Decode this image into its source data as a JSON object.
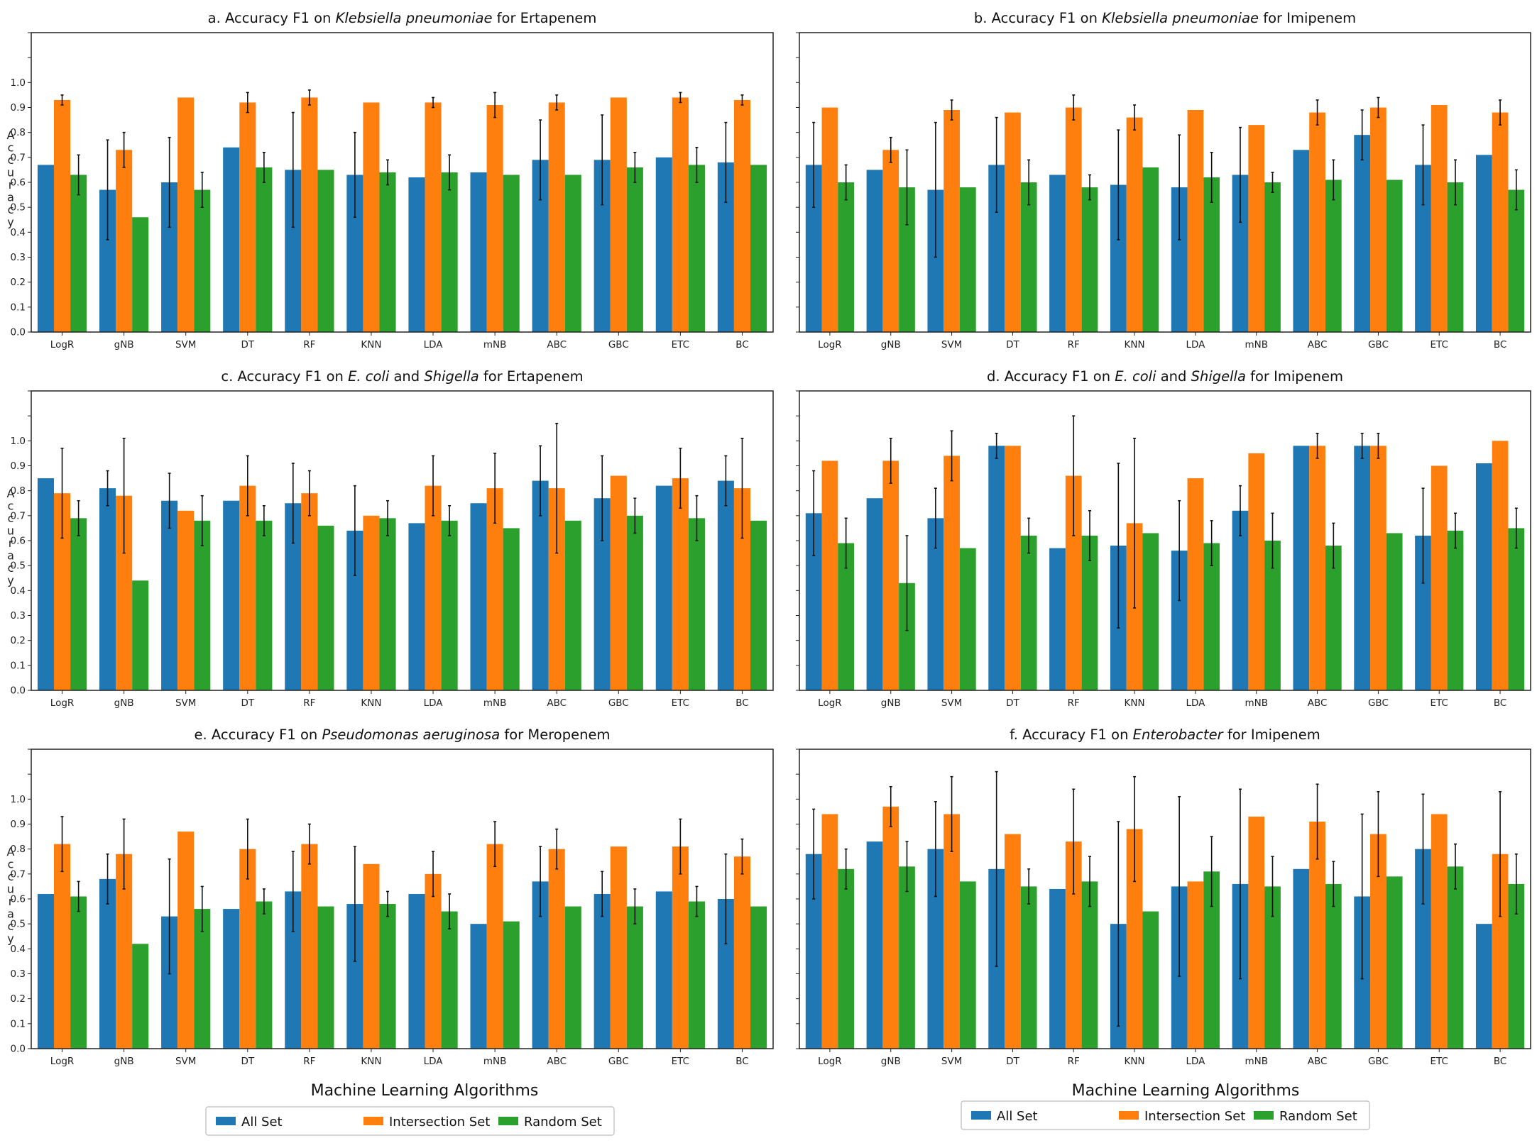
{
  "colors": {
    "all": "#1f77b4",
    "intersection": "#ff7f0e",
    "random": "#2ca02c"
  },
  "xlabels": [
    "Machine Learning Algorithms",
    "Machine Learning Algorithms"
  ],
  "legend": [
    "All Set",
    "Intersection Set",
    "Random Set"
  ],
  "chart_data": [
    {
      "type": "bar",
      "title": {
        "prefix": "a.  Accuracy F1 on ",
        "italic1": "Klebsiella pneumoniae",
        "middle": "",
        "italic2": "",
        "suffix": " for Ertapenem"
      },
      "ylabel": "Accuracy",
      "ylim": [
        0,
        1.2
      ],
      "yticks": [
        "0.0",
        "0.1",
        "0.2",
        "0.3",
        "0.4",
        "0.5",
        "0.6",
        "0.7",
        "0.8",
        "0.9",
        "1.0"
      ],
      "categories": [
        "LogR",
        "gNB",
        "SVM",
        "DT",
        "RF",
        "KNN",
        "LDA",
        "mNB",
        "ABC",
        "GBC",
        "ETC",
        "BC"
      ],
      "series": [
        {
          "name": "All Set",
          "values": [
            0.67,
            0.57,
            0.6,
            0.74,
            0.65,
            0.63,
            0.62,
            0.64,
            0.69,
            0.69,
            0.7,
            0.68
          ],
          "err": [
            0.0,
            0.2,
            0.18,
            0.0,
            0.23,
            0.17,
            0.0,
            0.0,
            0.16,
            0.18,
            0.0,
            0.16
          ]
        },
        {
          "name": "Intersection Set",
          "values": [
            0.93,
            0.73,
            0.94,
            0.92,
            0.94,
            0.92,
            0.92,
            0.91,
            0.92,
            0.94,
            0.94,
            0.93
          ],
          "err": [
            0.02,
            0.07,
            0.0,
            0.04,
            0.03,
            0.0,
            0.02,
            0.05,
            0.03,
            0.0,
            0.02,
            0.02
          ]
        },
        {
          "name": "Random Set",
          "values": [
            0.63,
            0.46,
            0.57,
            0.66,
            0.65,
            0.64,
            0.64,
            0.63,
            0.63,
            0.66,
            0.67,
            0.67
          ],
          "err": [
            0.08,
            0.0,
            0.07,
            0.06,
            0.0,
            0.05,
            0.07,
            0.0,
            0.0,
            0.06,
            0.07,
            0.0
          ]
        }
      ]
    },
    {
      "type": "bar",
      "title": {
        "prefix": "b.  Accuracy F1 on ",
        "italic1": "Klebsiella pneumoniae",
        "middle": "",
        "italic2": "",
        "suffix": " for Imipenem"
      },
      "ylabel": "",
      "ylim": [
        0,
        1.2
      ],
      "yticks": [],
      "categories": [
        "LogR",
        "gNB",
        "SVM",
        "DT",
        "RF",
        "KNN",
        "LDA",
        "mNB",
        "ABC",
        "GBC",
        "ETC",
        "BC"
      ],
      "series": [
        {
          "name": "All Set",
          "values": [
            0.67,
            0.65,
            0.57,
            0.67,
            0.63,
            0.59,
            0.58,
            0.63,
            0.73,
            0.79,
            0.67,
            0.71
          ],
          "err": [
            0.17,
            0.0,
            0.27,
            0.19,
            0.0,
            0.22,
            0.21,
            0.19,
            0.0,
            0.1,
            0.16,
            0.0
          ]
        },
        {
          "name": "Intersection Set",
          "values": [
            0.9,
            0.73,
            0.89,
            0.88,
            0.9,
            0.86,
            0.89,
            0.83,
            0.88,
            0.9,
            0.91,
            0.88
          ],
          "err": [
            0.0,
            0.05,
            0.04,
            0.0,
            0.05,
            0.05,
            0.0,
            0.0,
            0.05,
            0.04,
            0.0,
            0.05
          ]
        },
        {
          "name": "Random Set",
          "values": [
            0.6,
            0.58,
            0.58,
            0.6,
            0.58,
            0.66,
            0.62,
            0.6,
            0.61,
            0.61,
            0.6,
            0.57
          ],
          "err": [
            0.07,
            0.15,
            0.0,
            0.09,
            0.05,
            0.0,
            0.1,
            0.04,
            0.08,
            0.0,
            0.09,
            0.08
          ]
        }
      ]
    },
    {
      "type": "bar",
      "title": {
        "prefix": "c.  Accuracy F1 on ",
        "italic1": "E. coli",
        "middle": " and ",
        "italic2": "Shigella",
        "suffix": " for Ertapenem"
      },
      "ylabel": "Accuracy",
      "ylim": [
        0,
        1.2
      ],
      "yticks": [
        "0.0",
        "0.1",
        "0.2",
        "0.3",
        "0.4",
        "0.5",
        "0.6",
        "0.7",
        "0.8",
        "0.9",
        "1.0"
      ],
      "categories": [
        "LogR",
        "gNB",
        "SVM",
        "DT",
        "RF",
        "KNN",
        "LDA",
        "mNB",
        "ABC",
        "GBC",
        "ETC",
        "BC"
      ],
      "series": [
        {
          "name": "All Set",
          "values": [
            0.85,
            0.81,
            0.76,
            0.76,
            0.75,
            0.64,
            0.67,
            0.75,
            0.84,
            0.77,
            0.82,
            0.84
          ],
          "err": [
            0.0,
            0.07,
            0.11,
            0.0,
            0.16,
            0.18,
            0.0,
            0.0,
            0.14,
            0.17,
            0.0,
            0.1
          ]
        },
        {
          "name": "Intersection Set",
          "values": [
            0.79,
            0.78,
            0.72,
            0.82,
            0.79,
            0.7,
            0.82,
            0.81,
            0.81,
            0.86,
            0.85,
            0.81
          ],
          "err": [
            0.18,
            0.23,
            0.0,
            0.12,
            0.09,
            0.0,
            0.12,
            0.14,
            0.26,
            0.0,
            0.12,
            0.2
          ]
        },
        {
          "name": "Random Set",
          "values": [
            0.69,
            0.44,
            0.68,
            0.68,
            0.66,
            0.69,
            0.68,
            0.65,
            0.68,
            0.7,
            0.69,
            0.68
          ],
          "err": [
            0.07,
            0.0,
            0.1,
            0.06,
            0.0,
            0.07,
            0.06,
            0.0,
            0.0,
            0.07,
            0.09,
            0.0
          ]
        }
      ]
    },
    {
      "type": "bar",
      "title": {
        "prefix": "d.  Accuracy F1 on ",
        "italic1": "E. coli",
        "middle": " and ",
        "italic2": "Shigella",
        "suffix": " for Imipenem"
      },
      "ylabel": "",
      "ylim": [
        0,
        1.2
      ],
      "yticks": [],
      "categories": [
        "LogR",
        "gNB",
        "SVM",
        "DT",
        "RF",
        "KNN",
        "LDA",
        "mNB",
        "ABC",
        "GBC",
        "ETC",
        "BC"
      ],
      "series": [
        {
          "name": "All Set",
          "values": [
            0.71,
            0.77,
            0.69,
            0.98,
            0.57,
            0.58,
            0.56,
            0.72,
            0.98,
            0.98,
            0.62,
            0.91
          ],
          "err": [
            0.17,
            0.0,
            0.12,
            0.05,
            0.0,
            0.33,
            0.2,
            0.1,
            0.0,
            0.05,
            0.19,
            0.0
          ]
        },
        {
          "name": "Intersection Set",
          "values": [
            0.92,
            0.92,
            0.94,
            0.98,
            0.86,
            0.67,
            0.85,
            0.95,
            0.98,
            0.98,
            0.9,
            1.0
          ],
          "err": [
            0.0,
            0.09,
            0.1,
            0.0,
            0.24,
            0.34,
            0.0,
            0.0,
            0.05,
            0.05,
            0.0,
            0.0
          ]
        },
        {
          "name": "Random Set",
          "values": [
            0.59,
            0.43,
            0.57,
            0.62,
            0.62,
            0.63,
            0.59,
            0.6,
            0.58,
            0.63,
            0.64,
            0.65
          ],
          "err": [
            0.1,
            0.19,
            0.0,
            0.07,
            0.1,
            0.0,
            0.09,
            0.11,
            0.09,
            0.0,
            0.07,
            0.08
          ]
        }
      ]
    },
    {
      "type": "bar",
      "title": {
        "prefix": "e.  Accuracy F1 on ",
        "italic1": "Pseudomonas aeruginosa",
        "middle": "",
        "italic2": "",
        "suffix": " for Meropenem"
      },
      "ylabel": "Accuracy",
      "ylim": [
        0,
        1.2
      ],
      "yticks": [
        "0.0",
        "0.1",
        "0.2",
        "0.3",
        "0.4",
        "0.5",
        "0.6",
        "0.7",
        "0.8",
        "0.9",
        "1.0"
      ],
      "categories": [
        "LogR",
        "gNB",
        "SVM",
        "DT",
        "RF",
        "KNN",
        "LDA",
        "mNB",
        "ABC",
        "GBC",
        "ETC",
        "BC"
      ],
      "series": [
        {
          "name": "All Set",
          "values": [
            0.62,
            0.68,
            0.53,
            0.56,
            0.63,
            0.58,
            0.62,
            0.5,
            0.67,
            0.62,
            0.63,
            0.6
          ],
          "err": [
            0.0,
            0.1,
            0.23,
            0.0,
            0.16,
            0.23,
            0.0,
            0.0,
            0.14,
            0.09,
            0.0,
            0.18
          ]
        },
        {
          "name": "Intersection Set",
          "values": [
            0.82,
            0.78,
            0.87,
            0.8,
            0.82,
            0.74,
            0.7,
            0.82,
            0.8,
            0.81,
            0.81,
            0.77
          ],
          "err": [
            0.11,
            0.14,
            0.0,
            0.12,
            0.08,
            0.0,
            0.09,
            0.09,
            0.08,
            0.0,
            0.11,
            0.07
          ]
        },
        {
          "name": "Random Set",
          "values": [
            0.61,
            0.42,
            0.56,
            0.59,
            0.57,
            0.58,
            0.55,
            0.51,
            0.57,
            0.57,
            0.59,
            0.57
          ],
          "err": [
            0.06,
            0.0,
            0.09,
            0.05,
            0.0,
            0.05,
            0.07,
            0.0,
            0.0,
            0.07,
            0.06,
            0.0
          ]
        }
      ]
    },
    {
      "type": "bar",
      "title": {
        "prefix": "f.  Accuracy F1 on ",
        "italic1": "Enterobacter",
        "middle": "",
        "italic2": "",
        "suffix": " for Imipenem"
      },
      "ylabel": "",
      "ylim": [
        0,
        1.2
      ],
      "yticks": [],
      "categories": [
        "LogR",
        "gNB",
        "SVM",
        "DT",
        "RF",
        "KNN",
        "LDA",
        "mNB",
        "ABC",
        "GBC",
        "ETC",
        "BC"
      ],
      "series": [
        {
          "name": "All Set",
          "values": [
            0.78,
            0.83,
            0.8,
            0.72,
            0.64,
            0.5,
            0.65,
            0.66,
            0.72,
            0.61,
            0.8,
            0.5
          ],
          "err": [
            0.18,
            0.0,
            0.19,
            0.39,
            0.0,
            0.41,
            0.36,
            0.38,
            0.0,
            0.33,
            0.22,
            0.0
          ]
        },
        {
          "name": "Intersection Set",
          "values": [
            0.94,
            0.97,
            0.94,
            0.86,
            0.83,
            0.88,
            0.67,
            0.93,
            0.91,
            0.86,
            0.94,
            0.78
          ],
          "err": [
            0.0,
            0.08,
            0.15,
            0.0,
            0.21,
            0.21,
            0.0,
            0.0,
            0.15,
            0.17,
            0.0,
            0.25
          ]
        },
        {
          "name": "Random Set",
          "values": [
            0.72,
            0.73,
            0.67,
            0.65,
            0.67,
            0.55,
            0.71,
            0.65,
            0.66,
            0.69,
            0.73,
            0.66
          ],
          "err": [
            0.08,
            0.1,
            0.0,
            0.07,
            0.1,
            0.0,
            0.14,
            0.12,
            0.09,
            0.0,
            0.09,
            0.12
          ]
        }
      ]
    }
  ]
}
